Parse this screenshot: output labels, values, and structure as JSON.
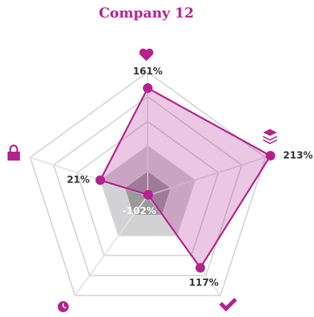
{
  "chart_data": {
    "type": "radar",
    "title": "Company 12",
    "values": [
      161,
      213,
      117,
      -102,
      21
    ],
    "value_labels": [
      "161%",
      "213%",
      "117%",
      "-102%",
      "21%"
    ],
    "color": "#b5218f",
    "rlim": [
      -100,
      200
    ],
    "rticks": [
      -100,
      -40,
      20,
      80,
      140,
      200
    ]
  }
}
